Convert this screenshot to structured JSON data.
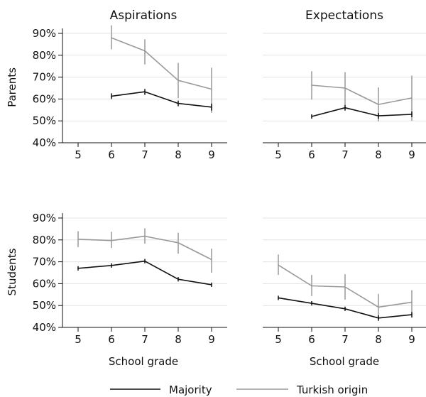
{
  "chart_data": {
    "type": "line",
    "x": [
      5,
      6,
      7,
      8,
      9
    ],
    "ylim": [
      40,
      90
    ],
    "yticks": [
      "40%",
      "50%",
      "60%",
      "70%",
      "80%",
      "90%"
    ],
    "xticks": [
      "5",
      "6",
      "7",
      "8",
      "9"
    ],
    "column_titles": [
      "Aspirations",
      "Expectations"
    ],
    "row_labels": [
      "Parents",
      "Students"
    ],
    "xlabel": "School grade",
    "grid": true,
    "legend": {
      "position": "bottom",
      "entries": [
        {
          "name": "Majority",
          "color": "#111111"
        },
        {
          "name": "Turkish origin",
          "color": "#999999"
        }
      ]
    },
    "panels": [
      {
        "row": "Parents",
        "column": "Aspirations",
        "series": [
          {
            "name": "Majority",
            "x": [
              6,
              7,
              8,
              9
            ],
            "values": [
              61.3,
              63.3,
              58.0,
              56.3
            ],
            "ci_low": [
              60.0,
              61.9,
              56.7,
              54.7
            ],
            "ci_high": [
              62.6,
              64.6,
              59.3,
              57.9
            ]
          },
          {
            "name": "Turkish origin",
            "x": [
              6,
              7,
              8,
              9
            ],
            "values": [
              88.0,
              82.0,
              68.5,
              64.5
            ],
            "ci_low": [
              82.7,
              75.8,
              60.4,
              53.7
            ],
            "ci_high": [
              93.7,
              87.3,
              76.5,
              74.3
            ]
          }
        ]
      },
      {
        "row": "Parents",
        "column": "Expectations",
        "series": [
          {
            "name": "Majority",
            "x": [
              6,
              7,
              8,
              9
            ],
            "values": [
              52.0,
              56.0,
              52.3,
              53.0
            ],
            "ci_low": [
              51.0,
              54.7,
              51.0,
              51.7
            ],
            "ci_high": [
              53.0,
              57.3,
              53.6,
              54.3
            ]
          },
          {
            "name": "Turkish origin",
            "x": [
              6,
              7,
              8,
              9
            ],
            "values": [
              66.3,
              65.0,
              57.5,
              60.5
            ],
            "ci_low": [
              59.7,
              57.3,
              49.7,
              50.0
            ],
            "ci_high": [
              72.7,
              72.3,
              65.3,
              70.7
            ]
          }
        ]
      },
      {
        "row": "Students",
        "column": "Aspirations",
        "series": [
          {
            "name": "Majority",
            "x": [
              5,
              6,
              7,
              8,
              9
            ],
            "values": [
              67.0,
              68.3,
              70.3,
              62.0,
              59.5
            ],
            "ci_low": [
              66.0,
              67.3,
              69.3,
              61.0,
              58.5
            ],
            "ci_high": [
              68.0,
              69.3,
              71.3,
              63.0,
              60.5
            ]
          },
          {
            "name": "Turkish origin",
            "x": [
              5,
              6,
              7,
              8,
              9
            ],
            "values": [
              80.3,
              79.7,
              81.7,
              78.7,
              71.0
            ],
            "ci_low": [
              76.7,
              76.3,
              78.3,
              73.7,
              65.0
            ],
            "ci_high": [
              84.0,
              83.7,
              85.3,
              83.3,
              76.0
            ]
          }
        ]
      },
      {
        "row": "Students",
        "column": "Expectations",
        "series": [
          {
            "name": "Majority",
            "x": [
              5,
              6,
              7,
              8,
              9
            ],
            "values": [
              53.5,
              51.0,
              48.5,
              44.3,
              45.8
            ],
            "ci_low": [
              52.5,
              50.0,
              47.5,
              43.0,
              44.5
            ],
            "ci_high": [
              54.5,
              52.0,
              49.5,
              45.5,
              47.0
            ]
          },
          {
            "name": "Turkish origin",
            "x": [
              5,
              6,
              7,
              8,
              9
            ],
            "values": [
              68.5,
              59.0,
              58.5,
              49.3,
              51.5
            ],
            "ci_low": [
              64.0,
              54.3,
              52.7,
              43.3,
              46.0
            ],
            "ci_high": [
              73.3,
              64.0,
              64.3,
              55.3,
              57.0
            ]
          }
        ]
      }
    ]
  }
}
